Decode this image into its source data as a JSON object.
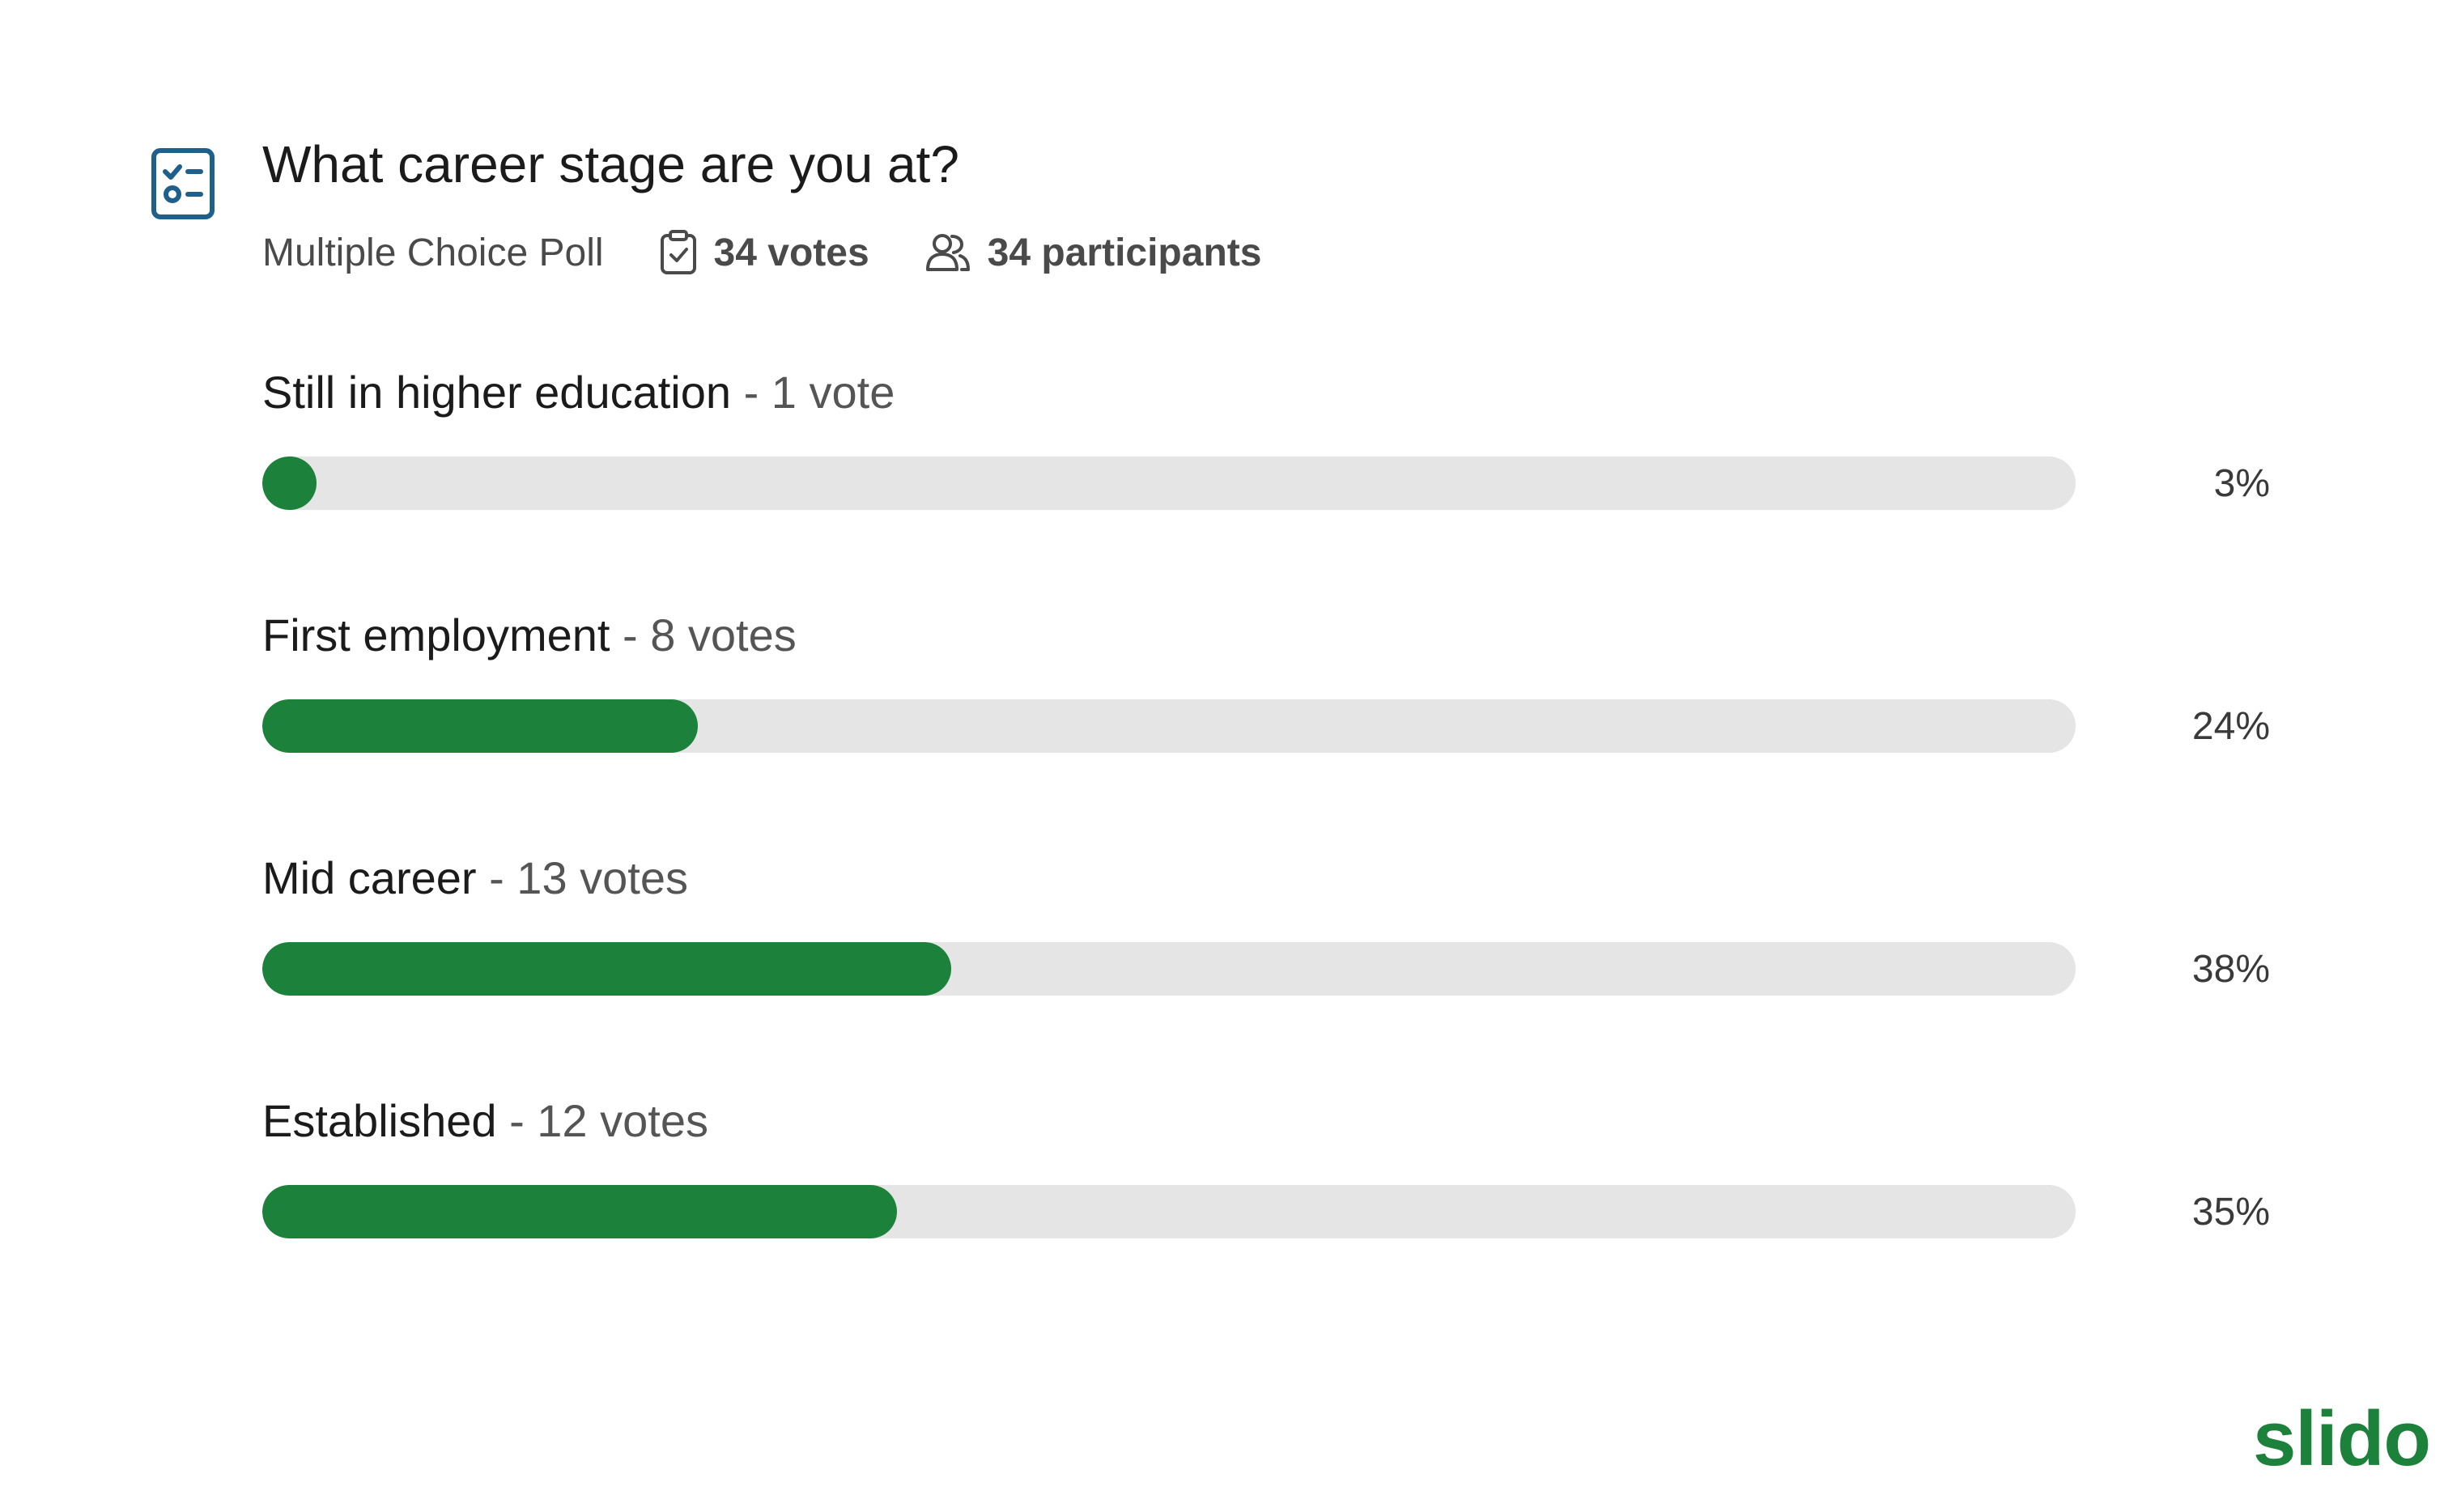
{
  "question": {
    "title": "What career stage are you at?",
    "type": "Multiple Choice Poll",
    "votes": "34 votes",
    "participants": "34 participants",
    "icon": "poll-list-icon"
  },
  "options": [
    {
      "name": "Still in higher education",
      "votes": " - 1 vote",
      "percent": "3%",
      "fraction": 0.03
    },
    {
      "name": "First employment",
      "votes": " - 8 votes",
      "percent": "24%",
      "fraction": 0.24
    },
    {
      "name": "Mid career",
      "votes": " - 13 votes",
      "percent": "38%",
      "fraction": 0.38
    },
    {
      "name": "Established",
      "votes": " - 12 votes",
      "percent": "35%",
      "fraction": 0.35
    }
  ],
  "brand": {
    "logo": "slido",
    "accent": "#1c813b",
    "icon_color": "#1f5f8b",
    "track": "#e5e5e5"
  }
}
